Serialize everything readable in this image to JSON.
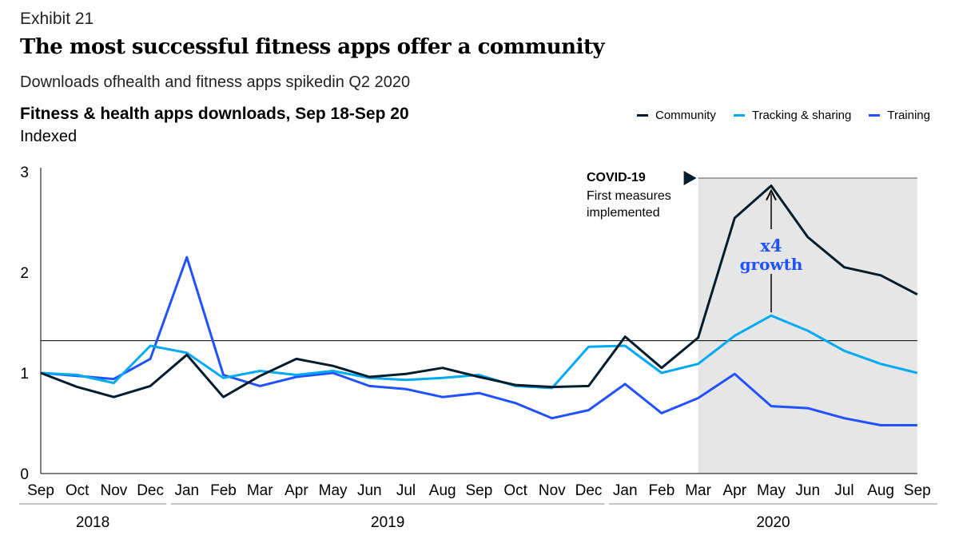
{
  "header": {
    "exhibit": "Exhibit 21",
    "title": "The most successful fitness apps offer a community",
    "subtitle": "Downloads ofhealth and fitness apps spikedin Q2 2020"
  },
  "chart_data": {
    "type": "line",
    "title": "Fitness & health apps downloads, Sep 18-Sep 20",
    "ylabel": "Indexed",
    "ylim": [
      0,
      3
    ],
    "yticks": [
      "0",
      "1",
      "2",
      "3"
    ],
    "categories": [
      "Sep",
      "Oct",
      "Nov",
      "Dec",
      "Jan",
      "Feb",
      "Mar",
      "Apr",
      "May",
      "Jun",
      "Jul",
      "Aug",
      "Sep",
      "Oct",
      "Nov",
      "Dec",
      "Jan",
      "Feb",
      "Mar",
      "Apr",
      "May",
      "Jun",
      "Jul",
      "Aug",
      "Sep"
    ],
    "year_groups": [
      {
        "label": "2018",
        "start": 0,
        "end": 3
      },
      {
        "label": "2019",
        "start": 4,
        "end": 15
      },
      {
        "label": "2020",
        "start": 16,
        "end": 24
      }
    ],
    "series": [
      {
        "name": "Community",
        "color": "#051c2c",
        "values": [
          1.0,
          0.86,
          0.76,
          0.87,
          1.18,
          0.76,
          0.97,
          1.14,
          1.07,
          0.96,
          0.99,
          1.05,
          0.96,
          0.88,
          0.86,
          0.87,
          1.36,
          1.05,
          1.35,
          2.54,
          2.86,
          2.35,
          2.05,
          1.97,
          1.78
        ]
      },
      {
        "name": "Tracking & sharing",
        "color": "#00a9f4",
        "values": [
          1.0,
          0.98,
          0.9,
          1.27,
          1.2,
          0.95,
          1.02,
          0.98,
          1.02,
          0.95,
          0.93,
          0.95,
          0.98,
          0.87,
          0.85,
          1.26,
          1.27,
          1.0,
          1.09,
          1.37,
          1.57,
          1.42,
          1.22,
          1.09,
          1.0
        ]
      },
      {
        "name": "Training",
        "color": "#2251ff",
        "values": [
          1.0,
          0.97,
          0.94,
          1.14,
          2.15,
          0.98,
          0.87,
          0.96,
          1.0,
          0.87,
          0.84,
          0.76,
          0.8,
          0.7,
          0.55,
          0.63,
          0.89,
          0.6,
          0.75,
          0.99,
          0.67,
          0.65,
          0.55,
          0.48,
          0.48
        ]
      }
    ],
    "reference_line": 1.32,
    "shaded_region": {
      "from": "Mar",
      "to": "Sep",
      "color": "#e6e6e6"
    },
    "annotations": {
      "covid_title": "COVID-19",
      "covid_line1": "First measures",
      "covid_line2": "implemented",
      "growth_line1": "x4",
      "growth_line2": "growth"
    },
    "grid": false,
    "legend_position": "top-right"
  }
}
